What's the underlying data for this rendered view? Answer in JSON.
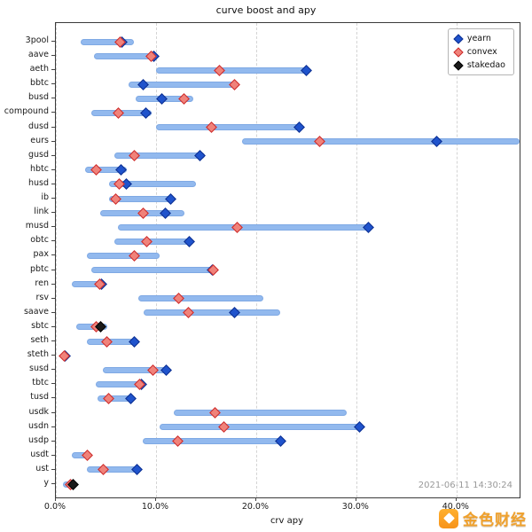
{
  "chart": {
    "title": "curve boost and apy",
    "xlabel": "crv apy",
    "timestamp": "2021-06-11 14:30:24"
  },
  "watermark": {
    "text": "金色财经"
  },
  "legend": [
    {
      "label": "yearn",
      "color": "#1f53cc",
      "edge": "#0e2f8f"
    },
    {
      "label": "convex",
      "color": "#f0827a",
      "edge": "#cc2a2a"
    },
    {
      "label": "stakedao",
      "color": "#1a1a1a",
      "edge": "#000000"
    }
  ],
  "colors": {
    "bar": "#92b9ee",
    "grid": "#d4d4d4",
    "frame": "#3a3a3a",
    "timestamp": "#999999",
    "watermark_orange": "#f7931a"
  },
  "chart_data": {
    "type": "range-bar",
    "title": "curve boost and apy",
    "xlabel": "crv apy",
    "x_ticks": [
      "0.0%",
      "10.0%",
      "20.0%",
      "30.0%",
      "40.0%"
    ],
    "x_tick_values": [
      0,
      10,
      20,
      30,
      40
    ],
    "xlim": [
      0,
      46.3
    ],
    "units": "percent",
    "rows": [
      {
        "pool": "3pool",
        "range": [
          2.5,
          7.8
        ],
        "yearn": 6.6,
        "convex": 6.4,
        "stakedao": null
      },
      {
        "pool": "aave",
        "range": [
          3.8,
          10.0
        ],
        "yearn": 9.8,
        "convex": 9.5,
        "stakedao": null
      },
      {
        "pool": "aeth",
        "range": [
          10.0,
          25.3
        ],
        "yearn": 25.0,
        "convex": 16.3,
        "stakedao": null
      },
      {
        "pool": "bbtc",
        "range": [
          7.3,
          17.9
        ],
        "yearn": 8.7,
        "convex": 17.8,
        "stakedao": null
      },
      {
        "pool": "busd",
        "range": [
          8.0,
          13.7
        ],
        "yearn": 10.6,
        "convex": 12.8,
        "stakedao": null
      },
      {
        "pool": "compound",
        "range": [
          3.5,
          9.6
        ],
        "yearn": 9.0,
        "convex": 6.2,
        "stakedao": null
      },
      {
        "pool": "dusd",
        "range": [
          10.0,
          24.5
        ],
        "yearn": 24.3,
        "convex": 15.5,
        "stakedao": null
      },
      {
        "pool": "eurs",
        "range": [
          18.6,
          46.3
        ],
        "yearn": 38.0,
        "convex": 26.3,
        "stakedao": null
      },
      {
        "pool": "gusd",
        "range": [
          5.8,
          14.9
        ],
        "yearn": 14.4,
        "convex": 7.8,
        "stakedao": null
      },
      {
        "pool": "hbtc",
        "range": [
          2.9,
          7.1
        ],
        "yearn": 6.5,
        "convex": 4.0,
        "stakedao": null
      },
      {
        "pool": "husd",
        "range": [
          5.3,
          14.0
        ],
        "yearn": 7.0,
        "convex": 6.3,
        "stakedao": null
      },
      {
        "pool": "ib",
        "range": [
          5.3,
          11.7
        ],
        "yearn": 11.5,
        "convex": 6.0,
        "stakedao": null
      },
      {
        "pool": "link",
        "range": [
          4.4,
          12.8
        ],
        "yearn": 10.9,
        "convex": 8.7,
        "stakedao": null
      },
      {
        "pool": "musd",
        "range": [
          6.2,
          31.5
        ],
        "yearn": 31.2,
        "convex": 18.1,
        "stakedao": null
      },
      {
        "pool": "obtc",
        "range": [
          5.8,
          13.5
        ],
        "yearn": 13.3,
        "convex": 9.1,
        "stakedao": null
      },
      {
        "pool": "pax",
        "range": [
          3.1,
          10.4
        ],
        "yearn": null,
        "convex": 7.8,
        "stakedao": null
      },
      {
        "pool": "pbtc",
        "range": [
          3.5,
          15.9
        ],
        "yearn": 15.6,
        "convex": 15.7,
        "stakedao": null
      },
      {
        "pool": "ren",
        "range": [
          1.6,
          4.8
        ],
        "yearn": 4.6,
        "convex": 4.4,
        "stakedao": null
      },
      {
        "pool": "rsv",
        "range": [
          8.2,
          20.7
        ],
        "yearn": null,
        "convex": 12.3,
        "stakedao": null
      },
      {
        "pool": "saave",
        "range": [
          8.8,
          22.4
        ],
        "yearn": 17.8,
        "convex": 13.2,
        "stakedao": null
      },
      {
        "pool": "sbtc",
        "range": [
          2.0,
          5.1
        ],
        "yearn": null,
        "convex": 4.0,
        "stakedao": 4.5
      },
      {
        "pool": "seth",
        "range": [
          3.1,
          8.0
        ],
        "yearn": 7.8,
        "convex": 5.1,
        "stakedao": null
      },
      {
        "pool": "steth",
        "range": [
          0.4,
          1.2
        ],
        "yearn": 0.9,
        "convex": 0.8,
        "stakedao": null
      },
      {
        "pool": "susd",
        "range": [
          4.7,
          11.3
        ],
        "yearn": 11.0,
        "convex": 9.7,
        "stakedao": null
      },
      {
        "pool": "tbtc",
        "range": [
          4.0,
          8.7
        ],
        "yearn": 8.5,
        "convex": 8.4,
        "stakedao": null
      },
      {
        "pool": "tusd",
        "range": [
          4.2,
          7.8
        ],
        "yearn": 7.5,
        "convex": 5.3,
        "stakedao": null
      },
      {
        "pool": "usdk",
        "range": [
          11.8,
          29.0
        ],
        "yearn": null,
        "convex": 15.9,
        "stakedao": null
      },
      {
        "pool": "usdn",
        "range": [
          10.4,
          30.5
        ],
        "yearn": 30.3,
        "convex": 16.8,
        "stakedao": null
      },
      {
        "pool": "usdp",
        "range": [
          8.7,
          22.6
        ],
        "yearn": 22.4,
        "convex": 12.2,
        "stakedao": null
      },
      {
        "pool": "usdt",
        "range": [
          1.6,
          3.5
        ],
        "yearn": null,
        "convex": 3.1,
        "stakedao": null
      },
      {
        "pool": "ust",
        "range": [
          3.1,
          8.4
        ],
        "yearn": 8.1,
        "convex": 4.7,
        "stakedao": null
      },
      {
        "pool": "y",
        "range": [
          0.7,
          2.0
        ],
        "yearn": null,
        "convex": 1.5,
        "stakedao": 1.7
      }
    ]
  }
}
